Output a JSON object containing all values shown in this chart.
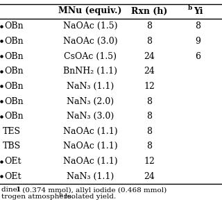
{
  "col1": [
    "OBn",
    "OBn",
    "OBn",
    "OBn",
    "OBn",
    "OBn",
    "OBn",
    "TES",
    "TBS",
    "OEt",
    "OEt"
  ],
  "col1_has_bullet": [
    true,
    true,
    true,
    true,
    true,
    true,
    true,
    false,
    false,
    true,
    true
  ],
  "col2": [
    "NaOAc (1.5)",
    "NaOAc (3.0)",
    "CsOAc (1.5)",
    "BnNH₂ (1.1)",
    "NaN₃ (1.1)",
    "NaN₃ (2.0)",
    "NaN₃ (3.0)",
    "NaOAc (1.1)",
    "NaOAc (1.1)",
    "NaOAc (1.1)",
    "NaN₃ (1.1)"
  ],
  "col3": [
    "8",
    "8",
    "24",
    "24",
    "12",
    "8",
    "8",
    "8",
    "8",
    "12",
    "24"
  ],
  "col4": [
    "8",
    "9",
    "6",
    "",
    "",
    "",
    "",
    "",
    "",
    "",
    ""
  ],
  "header1": "MNu (equiv.)",
  "header2": "Rxn (h)",
  "header3": "Yi",
  "header3_super": "b",
  "footnote1": "dine ",
  "footnote1b": "1",
  "footnote1c": " (0.374 mmol), allyl iodide (0.468 mmol)",
  "footnote2a": "trogen atmosphere. ",
  "footnote2b": "b",
  "footnote2c": " Isolated yield.",
  "background": "#ffffff",
  "text_color": "#000000",
  "font_size": 9.0,
  "footnote_font_size": 7.5
}
